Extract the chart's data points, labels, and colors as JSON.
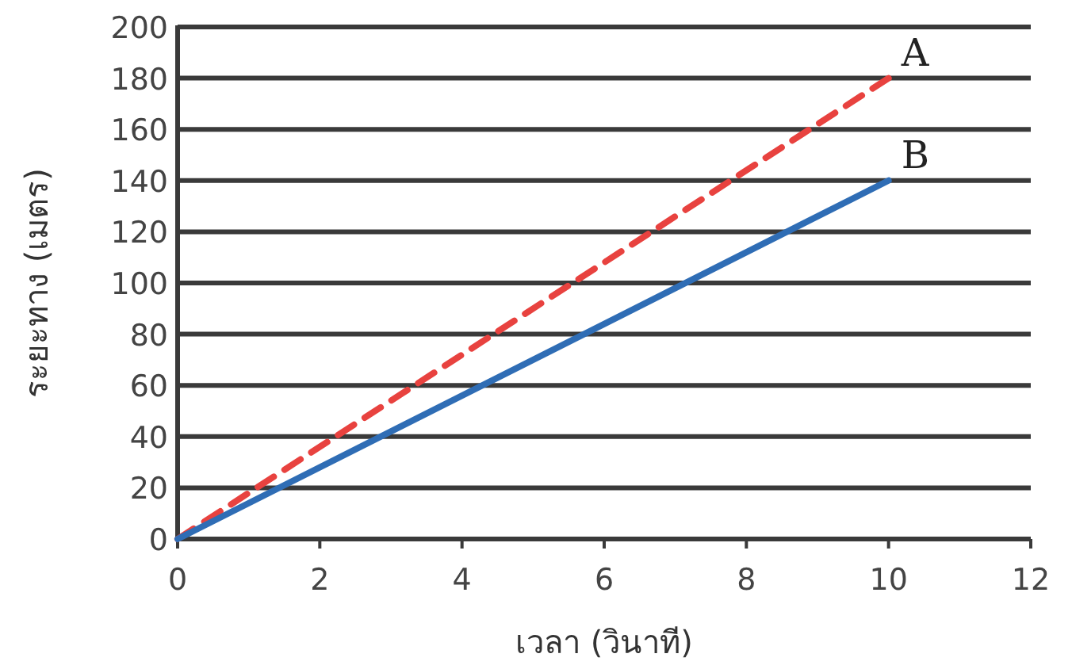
{
  "chart_data": {
    "type": "line",
    "xlabel": "เวลา (วินาที)",
    "ylabel": "ระยะทาง (เมตร)",
    "x": [
      0,
      10
    ],
    "series": [
      {
        "name": "A",
        "color": "#e8423f",
        "line_style": "dashed",
        "values": [
          0,
          180
        ]
      },
      {
        "name": "B",
        "color": "#2f6db5",
        "line_style": "solid",
        "values": [
          0,
          140
        ]
      }
    ],
    "xlim": [
      0,
      12
    ],
    "xticks": [
      0,
      2,
      4,
      6,
      8,
      10,
      12
    ],
    "ylim": [
      0,
      200
    ],
    "yticks": [
      0,
      20,
      40,
      60,
      80,
      100,
      120,
      140,
      160,
      180,
      200
    ],
    "grid": "y",
    "legend": false,
    "marker": "none"
  }
}
